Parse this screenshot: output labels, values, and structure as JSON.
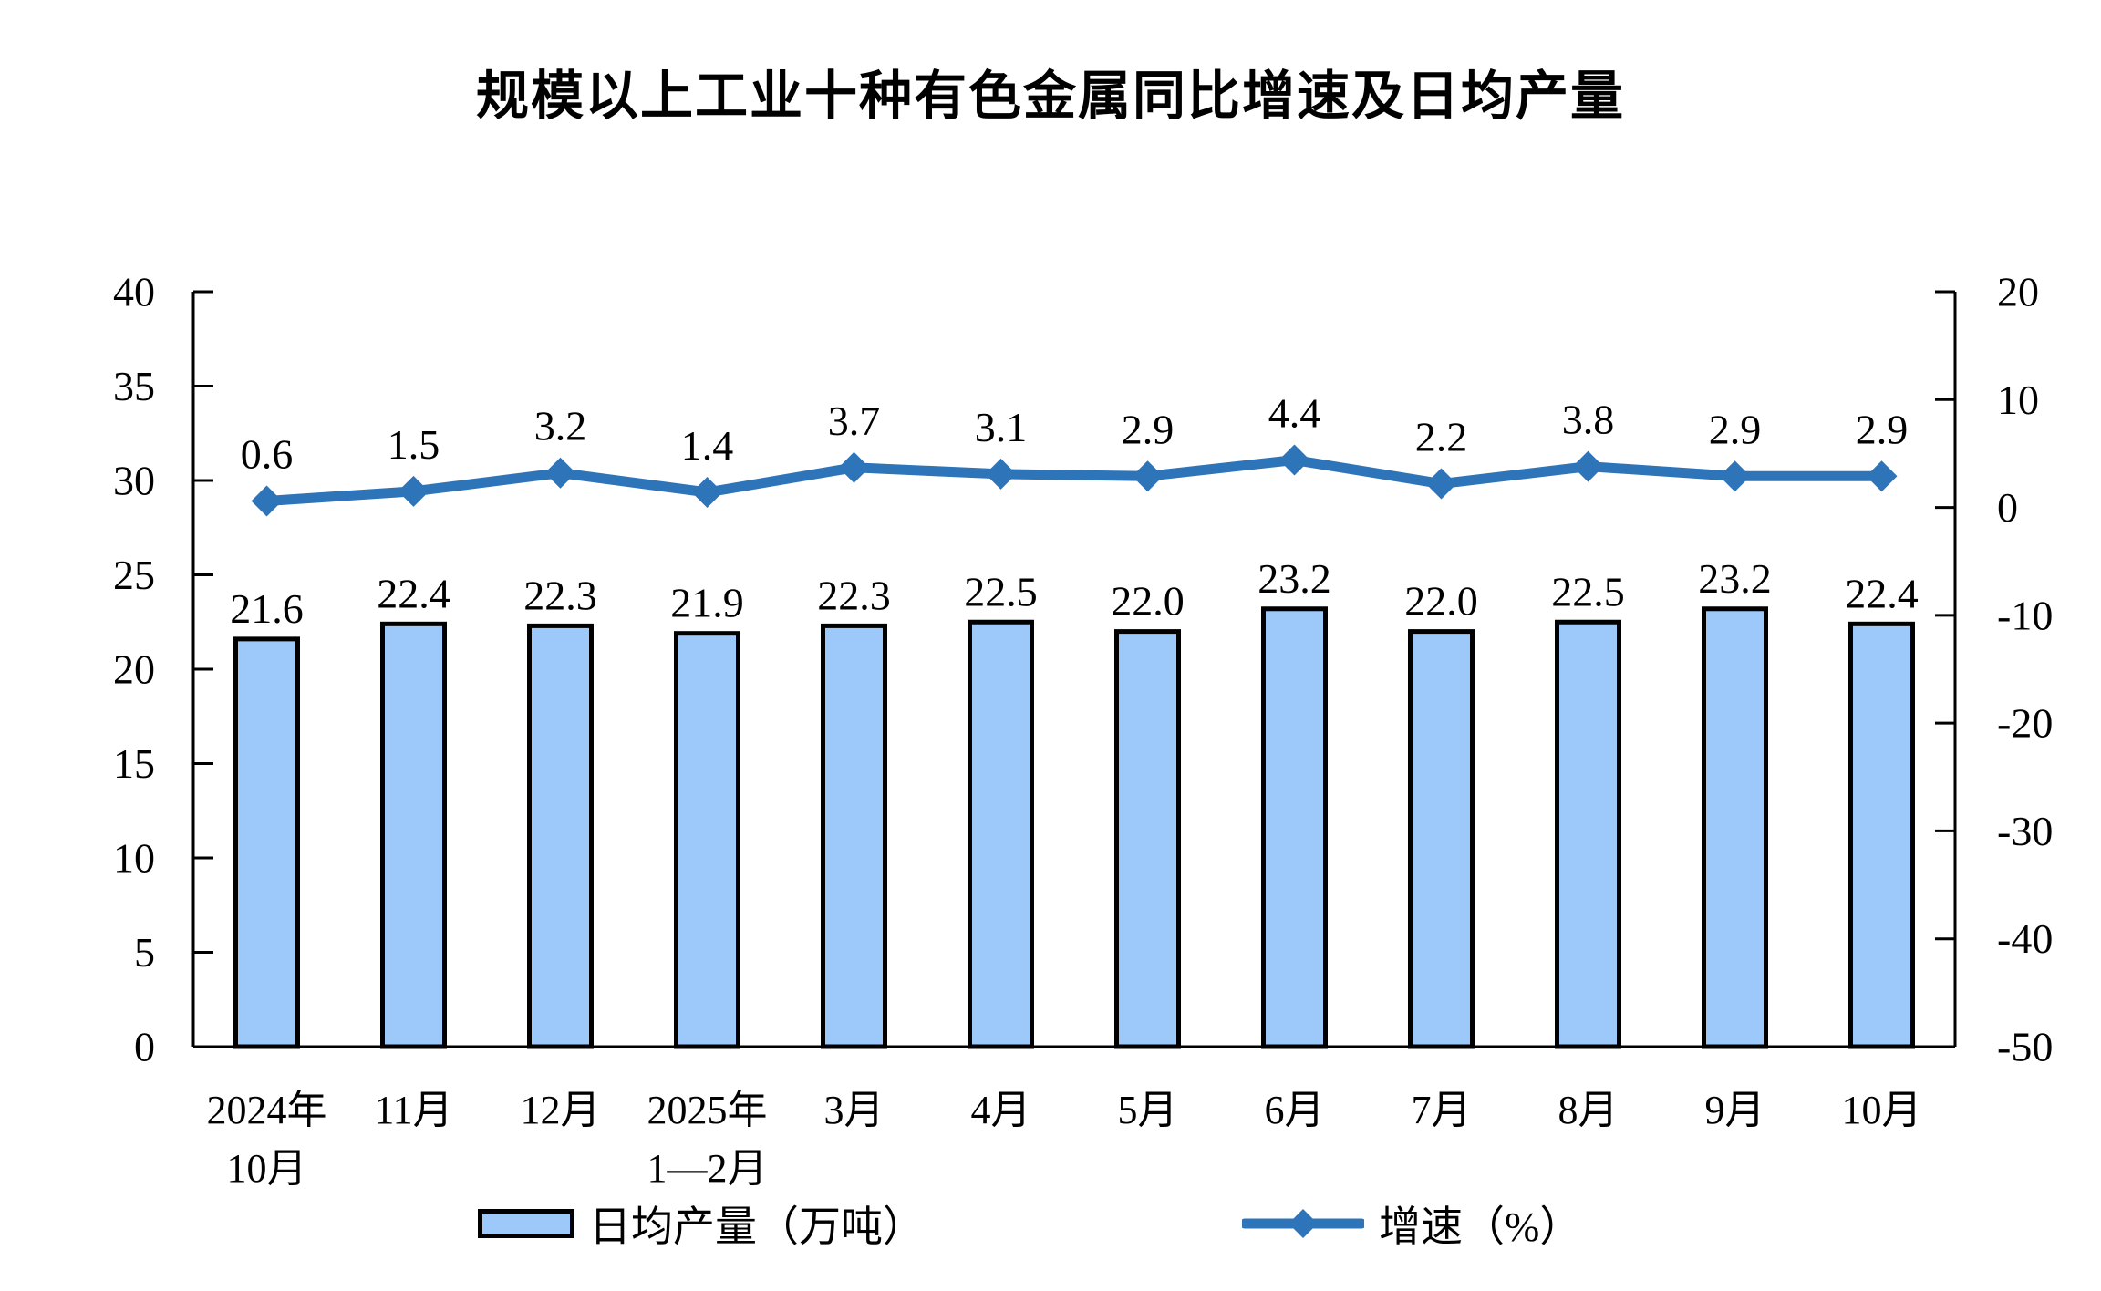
{
  "title": "规模以上工业十种有色金属同比增速及日均产量",
  "colors": {
    "bar_fill": "#9DC9FA",
    "bar_border": "#000000",
    "line": "#2E74B9",
    "axis": "#000000",
    "text": "#000000"
  },
  "legend": {
    "bars_label": "日均产量（万吨）",
    "line_label": "增速（%）"
  },
  "chart_data": {
    "type": "bar+line combo",
    "title": "规模以上工业十种有色金属同比增速及日均产量",
    "categories": [
      [
        "2024年",
        "10月"
      ],
      [
        "11月"
      ],
      [
        "12月"
      ],
      [
        "2025年",
        "1—2月"
      ],
      [
        "3月"
      ],
      [
        "4月"
      ],
      [
        "5月"
      ],
      [
        "6月"
      ],
      [
        "7月"
      ],
      [
        "8月"
      ],
      [
        "9月"
      ],
      [
        "10月"
      ]
    ],
    "series": [
      {
        "name": "日均产量（万吨）",
        "type": "bar",
        "axis": "left",
        "values": [
          21.6,
          22.4,
          22.3,
          21.9,
          22.3,
          22.5,
          22.0,
          23.2,
          22.0,
          22.5,
          23.2,
          22.4
        ],
        "labels": [
          "21.6",
          "22.4",
          "22.3",
          "21.9",
          "22.3",
          "22.5",
          "22.0",
          "23.2",
          "22.0",
          "22.5",
          "23.2",
          "22.4"
        ]
      },
      {
        "name": "增速（%）",
        "type": "line",
        "axis": "right",
        "values": [
          0.6,
          1.5,
          3.2,
          1.4,
          3.7,
          3.1,
          2.9,
          4.4,
          2.2,
          3.8,
          2.9,
          2.9
        ],
        "labels": [
          "0.6",
          "1.5",
          "3.2",
          "1.4",
          "3.7",
          "3.1",
          "2.9",
          "4.4",
          "2.2",
          "3.8",
          "2.9",
          "2.9"
        ]
      }
    ],
    "left_axis": {
      "min": 0,
      "max": 40,
      "step": 5,
      "tick_labels": [
        "40",
        "35",
        "30",
        "25",
        "20",
        "15",
        "10",
        "5",
        "0"
      ]
    },
    "right_axis": {
      "min": -50,
      "max": 20,
      "step": 10,
      "tick_labels": [
        "20",
        "10",
        "0",
        "-10",
        "-20",
        "-30",
        "-40",
        "-50"
      ]
    },
    "grid": false,
    "legend_position": "bottom"
  }
}
